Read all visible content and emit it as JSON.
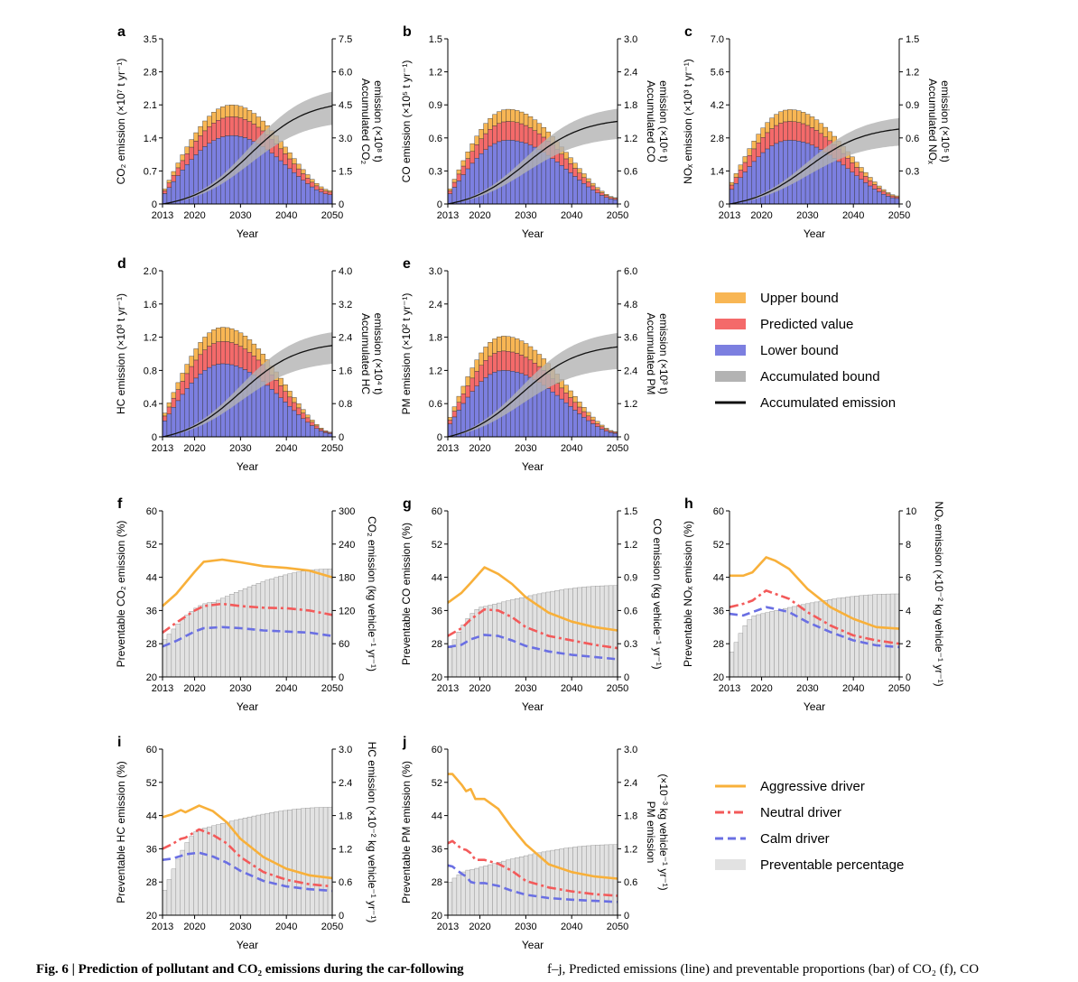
{
  "figure": {
    "caption_left": "Fig. 6 | Prediction of pollutant and CO₂ emissions during the car-following",
    "caption_right": "f–j, Predicted emissions (line) and preventable proportions (bar) of CO₂ (f), CO"
  },
  "colors": {
    "upper": "#f8b654",
    "predicted": "#f46a6a",
    "lower": "#7c7fe0",
    "band": "#b3b3b3",
    "line": "#111111",
    "aggressive": "#f8b03a",
    "neutral": "#f35a5a",
    "calm": "#6a6fe3",
    "preventable": "#e2e2e2"
  },
  "legend_top": [
    {
      "label": "Upper bound",
      "kind": "box",
      "color": "#f8b654"
    },
    {
      "label": "Predicted value",
      "kind": "box",
      "color": "#f46a6a"
    },
    {
      "label": "Lower bound",
      "kind": "box",
      "color": "#7c7fe0"
    },
    {
      "label": "Accumulated bound",
      "kind": "box",
      "color": "#b3b3b3"
    },
    {
      "label": "Accumulated emission",
      "kind": "line",
      "color": "#111111"
    }
  ],
  "legend_bottom": [
    {
      "label": "Aggressive driver",
      "kind": "solid",
      "color": "#f8b03a"
    },
    {
      "label": "Neutral driver",
      "kind": "dashdot",
      "color": "#f35a5a"
    },
    {
      "label": "Calm driver",
      "kind": "dash",
      "color": "#6a6fe3"
    },
    {
      "label": "Preventable percentage",
      "kind": "box",
      "color": "#e2e2e2"
    }
  ],
  "chart_data": [
    {
      "panel": "a",
      "type": "bar",
      "xlabel": "Year",
      "ylabel": "CO₂ emission (×10⁷ t yr⁻¹)",
      "y2label": [
        "Accumulated CO₂",
        "emission (×10⁸ t)"
      ],
      "xticks": [
        "2013",
        "2020",
        "2030",
        "2040",
        "2050"
      ],
      "yticks": [
        "0",
        "0.7",
        "1.4",
        "2.1",
        "2.8",
        "3.5"
      ],
      "y2ticks": [
        "0",
        "1.5",
        "3.0",
        "4.5",
        "6.0",
        "7.5"
      ],
      "x_range": [
        2013,
        2050
      ],
      "ylim": [
        0,
        3.5
      ],
      "y2lim": [
        0,
        7.5
      ],
      "peak_year": 2028,
      "peak_lower": 1.45,
      "peak_predicted": 1.85,
      "peak_upper": 2.1,
      "start_predicted": 0.28,
      "end_predicted": 0.25,
      "accumulated_emission_2050": 4.45,
      "accumulated_band_2050": [
        3.6,
        5.1
      ]
    },
    {
      "panel": "b",
      "type": "bar",
      "xlabel": "Year",
      "ylabel": "CO emission (×10⁵ t yr⁻¹)",
      "y2label": [
        "Accumulated CO",
        "emission (×10⁶ t)"
      ],
      "xticks": [
        "2013",
        "2020",
        "2030",
        "2040",
        "2050"
      ],
      "yticks": [
        "0",
        "0.3",
        "0.6",
        "0.9",
        "1.2",
        "1.5"
      ],
      "y2ticks": [
        "0",
        "0.6",
        "1.2",
        "1.8",
        "2.4",
        "3.0"
      ],
      "x_range": [
        2013,
        2050
      ],
      "ylim": [
        0,
        1.5
      ],
      "y2lim": [
        0,
        3.0
      ],
      "peak_year": 2026,
      "peak_lower": 0.58,
      "peak_predicted": 0.75,
      "peak_upper": 0.86,
      "start_predicted": 0.12,
      "end_predicted": 0.05,
      "accumulated_emission_2050": 1.5,
      "accumulated_band_2050": [
        1.18,
        1.73
      ]
    },
    {
      "panel": "c",
      "type": "bar",
      "xlabel": "Year",
      "ylabel": "NOₓ emission (×10³ t yr⁻¹)",
      "y2label": [
        "Accumulated NOₓ",
        "emission (×10⁵ t)"
      ],
      "xticks": [
        "2013",
        "2020",
        "2030",
        "2040",
        "2050"
      ],
      "yticks": [
        "0",
        "1.4",
        "2.8",
        "4.2",
        "5.6",
        "7.0"
      ],
      "y2ticks": [
        "0",
        "0.3",
        "0.6",
        "0.9",
        "1.2",
        "1.5"
      ],
      "x_range": [
        2013,
        2050
      ],
      "ylim": [
        0,
        7.0
      ],
      "y2lim": [
        0,
        1.5
      ],
      "peak_year": 2026,
      "peak_lower": 2.7,
      "peak_predicted": 3.5,
      "peak_upper": 4.0,
      "start_predicted": 0.8,
      "end_predicted": 0.3,
      "accumulated_emission_2050": 0.68,
      "accumulated_band_2050": [
        0.53,
        0.78
      ]
    },
    {
      "panel": "d",
      "type": "bar",
      "xlabel": "Year",
      "ylabel": "HC emission (×10³ t yr⁻¹)",
      "y2label": [
        "Accumulated HC",
        "emission (×10⁴ t)"
      ],
      "xticks": [
        "2013",
        "2020",
        "2030",
        "2040",
        "2050"
      ],
      "yticks": [
        "0",
        "0.4",
        "0.8",
        "1.2",
        "1.6",
        "2.0"
      ],
      "y2ticks": [
        "0",
        "0.8",
        "1.6",
        "2.4",
        "3.2",
        "4.0"
      ],
      "x_range": [
        2013,
        2050
      ],
      "ylim": [
        0,
        2.0
      ],
      "y2lim": [
        0,
        4.0
      ],
      "peak_year": 2026,
      "peak_lower": 0.88,
      "peak_predicted": 1.15,
      "peak_upper": 1.32,
      "start_predicted": 0.25,
      "end_predicted": 0.05,
      "accumulated_emission_2050": 2.2,
      "accumulated_band_2050": [
        1.76,
        2.52
      ]
    },
    {
      "panel": "e",
      "type": "bar",
      "xlabel": "Year",
      "ylabel": "PM emission (×10² t yr⁻¹)",
      "y2label": [
        "Accumulated PM",
        "emission (×10³ t)"
      ],
      "xticks": [
        "2013",
        "2020",
        "2030",
        "2040",
        "2050"
      ],
      "yticks": [
        "0",
        "0.6",
        "1.2",
        "1.8",
        "2.4",
        "3.0"
      ],
      "y2ticks": [
        "0",
        "1.2",
        "2.4",
        "3.6",
        "4.8",
        "6.0"
      ],
      "x_range": [
        2013,
        2050
      ],
      "ylim": [
        0,
        3.0
      ],
      "y2lim": [
        0,
        6.0
      ],
      "peak_year": 2025,
      "peak_lower": 1.2,
      "peak_predicted": 1.55,
      "peak_upper": 1.82,
      "start_predicted": 0.3,
      "end_predicted": 0.08,
      "accumulated_emission_2050": 3.25,
      "accumulated_band_2050": [
        2.45,
        3.75
      ]
    },
    {
      "panel": "f",
      "type": "line",
      "xlabel": "Year",
      "ylabel": "Preventable CO₂ emission (%)",
      "y2label": [
        "CO₂ emission (kg vehicle⁻¹ yr⁻¹)"
      ],
      "xticks": [
        "2013",
        "2020",
        "2030",
        "2040",
        "2050"
      ],
      "yticks": [
        "20",
        "28",
        "36",
        "44",
        "52",
        "60"
      ],
      "y2ticks": [
        "0",
        "60",
        "120",
        "180",
        "240",
        "300"
      ],
      "x_range": [
        2013,
        2050
      ],
      "ylim": [
        20,
        60
      ],
      "y2lim": [
        0,
        300
      ],
      "preventable_percentage": {
        "start": 29,
        "rise_end_year": 2024,
        "plateau": 38,
        "end": 46
      },
      "series": [
        {
          "name": "Aggressive driver",
          "x": [
            2013,
            2016,
            2020,
            2022,
            2026,
            2030,
            2035,
            2040,
            2045,
            2050
          ],
          "y": [
            128,
            150,
            190,
            208,
            212,
            207,
            200,
            197,
            192,
            180
          ]
        },
        {
          "name": "Neutral driver",
          "x": [
            2013,
            2016,
            2020,
            2022,
            2026,
            2030,
            2035,
            2040,
            2045,
            2050
          ],
          "y": [
            80,
            98,
            120,
            128,
            132,
            128,
            125,
            124,
            120,
            112
          ]
        },
        {
          "name": "Calm driver",
          "x": [
            2013,
            2016,
            2020,
            2022,
            2026,
            2030,
            2035,
            2040,
            2045,
            2050
          ],
          "y": [
            55,
            65,
            82,
            88,
            90,
            88,
            84,
            82,
            80,
            74
          ]
        }
      ]
    },
    {
      "panel": "g",
      "type": "line",
      "xlabel": "Year",
      "ylabel": "Preventable CO emission (%)",
      "y2label": [
        "CO emission (kg vehicle⁻¹ yr⁻¹)"
      ],
      "xticks": [
        "2013",
        "2020",
        "2030",
        "2040",
        "2050"
      ],
      "yticks": [
        "20",
        "28",
        "36",
        "44",
        "52",
        "60"
      ],
      "y2ticks": [
        "0",
        "0.3",
        "0.6",
        "0.9",
        "1.2",
        "1.5"
      ],
      "x_range": [
        2013,
        2050
      ],
      "ylim": [
        20,
        60
      ],
      "y2lim": [
        0,
        1.5
      ],
      "preventable_percentage": {
        "start": 27,
        "rise_end_year": 2021,
        "plateau": 37,
        "end": 42
      },
      "series": [
        {
          "name": "Aggressive driver",
          "x": [
            2013,
            2016,
            2018,
            2021,
            2024,
            2027,
            2030,
            2035,
            2040,
            2045,
            2050
          ],
          "y": [
            0.67,
            0.76,
            0.85,
            0.99,
            0.93,
            0.84,
            0.72,
            0.58,
            0.5,
            0.45,
            0.42
          ]
        },
        {
          "name": "Neutral driver",
          "x": [
            2013,
            2016,
            2018,
            2021,
            2024,
            2027,
            2030,
            2035,
            2040,
            2045,
            2050
          ],
          "y": [
            0.37,
            0.44,
            0.52,
            0.61,
            0.6,
            0.54,
            0.45,
            0.37,
            0.33,
            0.29,
            0.26
          ]
        },
        {
          "name": "Calm driver",
          "x": [
            2013,
            2016,
            2018,
            2021,
            2024,
            2027,
            2030,
            2035,
            2040,
            2045,
            2050
          ],
          "y": [
            0.27,
            0.29,
            0.34,
            0.38,
            0.37,
            0.33,
            0.28,
            0.23,
            0.2,
            0.18,
            0.16
          ]
        }
      ]
    },
    {
      "panel": "h",
      "type": "line",
      "xlabel": "Year",
      "ylabel": "Preventable NOₓ emission (%)",
      "y2label": [
        "NOₓ emission (×10⁻² kg vehicle⁻¹ yr⁻¹)"
      ],
      "xticks": [
        "2013",
        "2020",
        "2030",
        "2040",
        "2050"
      ],
      "yticks": [
        "20",
        "28",
        "36",
        "44",
        "52",
        "60"
      ],
      "y2ticks": [
        "0",
        "2",
        "4",
        "6",
        "8",
        "10"
      ],
      "x_range": [
        2013,
        2050
      ],
      "ylim": [
        20,
        60
      ],
      "y2lim": [
        0,
        10
      ],
      "preventable_percentage": {
        "start": 26,
        "rise_end_year": 2019,
        "plateau": 35,
        "end": 40
      },
      "series": [
        {
          "name": "Aggressive driver",
          "x": [
            2013,
            2016,
            2018,
            2021,
            2023,
            2026,
            2030,
            2035,
            2040,
            2045,
            2050
          ],
          "y": [
            6.1,
            6.1,
            6.3,
            7.2,
            7.0,
            6.5,
            5.3,
            4.2,
            3.5,
            3.0,
            2.9
          ]
        },
        {
          "name": "Neutral driver",
          "x": [
            2013,
            2016,
            2018,
            2021,
            2023,
            2026,
            2030,
            2035,
            2040,
            2045,
            2050
          ],
          "y": [
            4.2,
            4.4,
            4.6,
            5.2,
            5.0,
            4.7,
            3.9,
            3.1,
            2.5,
            2.2,
            2.0
          ]
        },
        {
          "name": "Calm driver",
          "x": [
            2013,
            2016,
            2018,
            2021,
            2023,
            2026,
            2030,
            2035,
            2040,
            2045,
            2050
          ],
          "y": [
            3.8,
            3.7,
            3.9,
            4.2,
            4.1,
            3.9,
            3.3,
            2.7,
            2.2,
            1.9,
            1.8
          ]
        }
      ]
    },
    {
      "panel": "i",
      "type": "line",
      "xlabel": "Year",
      "ylabel": "Preventable HC emission (%)",
      "y2label": [
        "HC emission (×10⁻² kg vehicle⁻¹ yr⁻¹)"
      ],
      "xticks": [
        "2013",
        "2020",
        "2030",
        "2040",
        "2050"
      ],
      "yticks": [
        "20",
        "28",
        "36",
        "44",
        "52",
        "60"
      ],
      "y2ticks": [
        "0",
        "0.6",
        "1.2",
        "1.8",
        "2.4",
        "3.0"
      ],
      "x_range": [
        2013,
        2050
      ],
      "ylim": [
        20,
        60
      ],
      "y2lim": [
        0,
        3.0
      ],
      "preventable_percentage": {
        "start": 26,
        "rise_end_year": 2022,
        "plateau": 41,
        "end": 46
      },
      "series": [
        {
          "name": "Aggressive driver",
          "x": [
            2013,
            2015,
            2017,
            2018,
            2021,
            2024,
            2027,
            2030,
            2035,
            2040,
            2045,
            2050
          ],
          "y": [
            1.77,
            1.82,
            1.9,
            1.86,
            1.98,
            1.88,
            1.68,
            1.38,
            1.05,
            0.84,
            0.72,
            0.67
          ]
        },
        {
          "name": "Neutral driver",
          "x": [
            2013,
            2015,
            2017,
            2018,
            2021,
            2024,
            2027,
            2030,
            2035,
            2040,
            2045,
            2050
          ],
          "y": [
            1.2,
            1.28,
            1.38,
            1.4,
            1.55,
            1.45,
            1.3,
            1.05,
            0.78,
            0.64,
            0.56,
            0.52
          ]
        },
        {
          "name": "Calm driver",
          "x": [
            2013,
            2015,
            2017,
            2018,
            2021,
            2024,
            2027,
            2030,
            2035,
            2040,
            2045,
            2050
          ],
          "y": [
            1.0,
            1.02,
            1.07,
            1.1,
            1.13,
            1.06,
            0.95,
            0.8,
            0.62,
            0.52,
            0.47,
            0.44
          ]
        }
      ]
    },
    {
      "panel": "j",
      "type": "line",
      "xlabel": "Year",
      "ylabel": "Preventable PM emission (%)",
      "y2label": [
        "PM emission",
        "(×10⁻³ kg vehicle⁻¹ yr⁻¹)"
      ],
      "xticks": [
        "2013",
        "2020",
        "2030",
        "2040",
        "2050"
      ],
      "yticks": [
        "20",
        "28",
        "36",
        "44",
        "52",
        "60"
      ],
      "y2ticks": [
        "0",
        "0.6",
        "1.2",
        "1.8",
        "2.4",
        "3.0"
      ],
      "x_range": [
        2013,
        2050
      ],
      "ylim": [
        20,
        60
      ],
      "y2lim": [
        0,
        3.0
      ],
      "preventable_percentage": {
        "start": 28,
        "rise_end_year": 2018,
        "plateau": 31,
        "end": 37
      },
      "series": [
        {
          "name": "Aggressive driver",
          "x": [
            2013,
            2014,
            2016,
            2017,
            2018,
            2019,
            2021,
            2024,
            2027,
            2030,
            2035,
            2040,
            2045,
            2050
          ],
          "y": [
            2.55,
            2.55,
            2.36,
            2.24,
            2.28,
            2.1,
            2.1,
            1.92,
            1.58,
            1.28,
            0.92,
            0.78,
            0.7,
            0.66
          ]
        },
        {
          "name": "Neutral driver",
          "x": [
            2013,
            2014,
            2016,
            2017,
            2018,
            2019,
            2021,
            2024,
            2027,
            2030,
            2035,
            2040,
            2045,
            2050
          ],
          "y": [
            1.3,
            1.34,
            1.2,
            1.18,
            1.12,
            1.0,
            1.0,
            0.93,
            0.8,
            0.62,
            0.5,
            0.43,
            0.38,
            0.35
          ]
        },
        {
          "name": "Calm driver",
          "x": [
            2013,
            2014,
            2016,
            2017,
            2018,
            2019,
            2021,
            2024,
            2027,
            2030,
            2035,
            2040,
            2045,
            2050
          ],
          "y": [
            0.9,
            0.88,
            0.75,
            0.7,
            0.6,
            0.58,
            0.58,
            0.53,
            0.44,
            0.37,
            0.31,
            0.28,
            0.26,
            0.24
          ]
        }
      ]
    }
  ]
}
